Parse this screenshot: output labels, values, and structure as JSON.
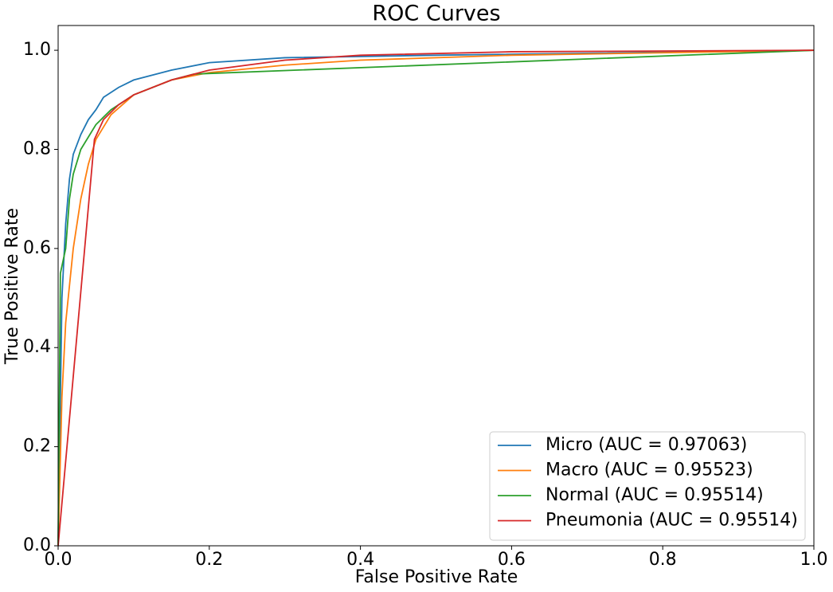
{
  "chart_data": {
    "type": "line",
    "title": "ROC Curves",
    "x_label": "False Positive Rate",
    "y_label": "True Positive Rate",
    "xlim": [
      0,
      1
    ],
    "ylim": [
      0,
      1.05
    ],
    "xticks": [
      {
        "value": 0,
        "label": "0.0"
      },
      0.2,
      0.4,
      0.6,
      0.8,
      {
        "value": 1,
        "label": "1.0"
      }
    ],
    "yticks": [
      {
        "value": 0,
        "label": "0.0"
      },
      0.2,
      0.4,
      0.6,
      0.8,
      {
        "value": 1,
        "label": "1.0"
      }
    ],
    "legend": "lower right",
    "series": [
      {
        "name": "Micro (AUC = 0.97063)",
        "color": "#1f77b4",
        "x": [
          0,
          0.005,
          0.01,
          0.015,
          0.02,
          0.03,
          0.04,
          0.05,
          0.06,
          0.08,
          0.1,
          0.15,
          0.2,
          0.3,
          0.5,
          1
        ],
        "values": [
          0,
          0.5,
          0.65,
          0.74,
          0.79,
          0.83,
          0.86,
          0.88,
          0.905,
          0.925,
          0.94,
          0.96,
          0.975,
          0.985,
          0.99,
          1
        ]
      },
      {
        "name": "Macro (AUC = 0.95523)",
        "color": "#ff7f0e",
        "x": [
          0,
          0.005,
          0.01,
          0.02,
          0.03,
          0.04,
          0.05,
          0.07,
          0.1,
          0.15,
          0.2,
          0.3,
          0.4,
          0.6,
          1
        ],
        "values": [
          0,
          0.3,
          0.45,
          0.6,
          0.7,
          0.77,
          0.82,
          0.87,
          0.91,
          0.94,
          0.955,
          0.97,
          0.98,
          0.99,
          1
        ]
      },
      {
        "name": "Normal (AUC = 0.95514)",
        "color": "#2ca02c",
        "x": [
          0,
          0.003,
          0.01,
          0.015,
          0.02,
          0.03,
          0.05,
          0.07,
          0.1,
          0.15,
          0.18,
          1
        ],
        "values": [
          0,
          0.55,
          0.6,
          0.7,
          0.75,
          0.8,
          0.85,
          0.88,
          0.91,
          0.94,
          0.952,
          1
        ]
      },
      {
        "name": "Pneumonia (AUC = 0.95514)",
        "color": "#d62728",
        "x": [
          0,
          0.048,
          0.06,
          0.08,
          0.1,
          0.15,
          0.2,
          0.3,
          0.4,
          0.6,
          1
        ],
        "values": [
          0,
          0.82,
          0.86,
          0.89,
          0.91,
          0.94,
          0.96,
          0.98,
          0.99,
          0.997,
          1
        ]
      }
    ]
  }
}
